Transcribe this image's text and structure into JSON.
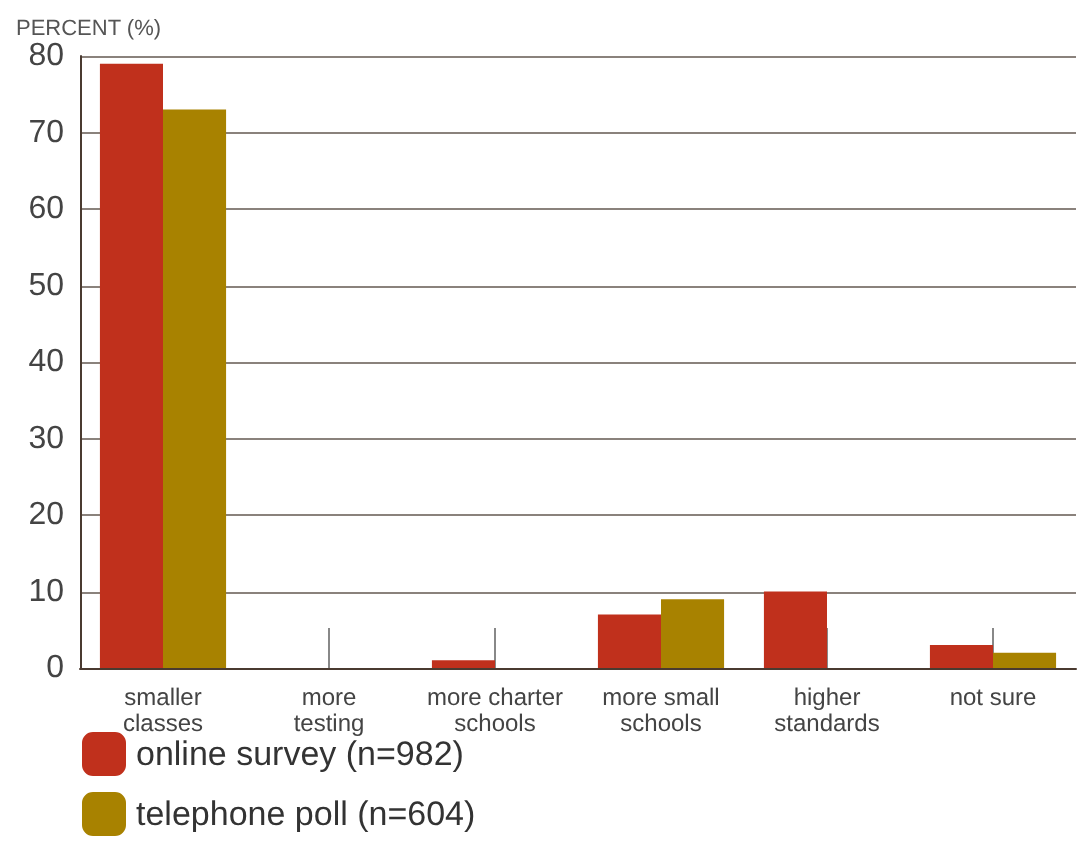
{
  "chart_data": {
    "type": "bar",
    "ylabel": "PERCENT (%)",
    "categories": [
      "smaller\nclasses",
      "more\ntesting",
      "more charter\nschools",
      "more small\nschools",
      "higher\nstandards",
      "not sure"
    ],
    "series": [
      {
        "name": "online survey (n=982)",
        "color": "#c0301c",
        "values": [
          79,
          0,
          1,
          7,
          10,
          3
        ]
      },
      {
        "name": "telephone poll (n=604)",
        "color": "#a88200",
        "values": [
          73,
          0,
          0,
          9,
          0,
          2
        ]
      }
    ],
    "ylim": [
      0,
      80
    ],
    "yticks": [
      0,
      10,
      20,
      30,
      40,
      50,
      60,
      70,
      80
    ],
    "grid": "y",
    "legend": "bottom left"
  }
}
